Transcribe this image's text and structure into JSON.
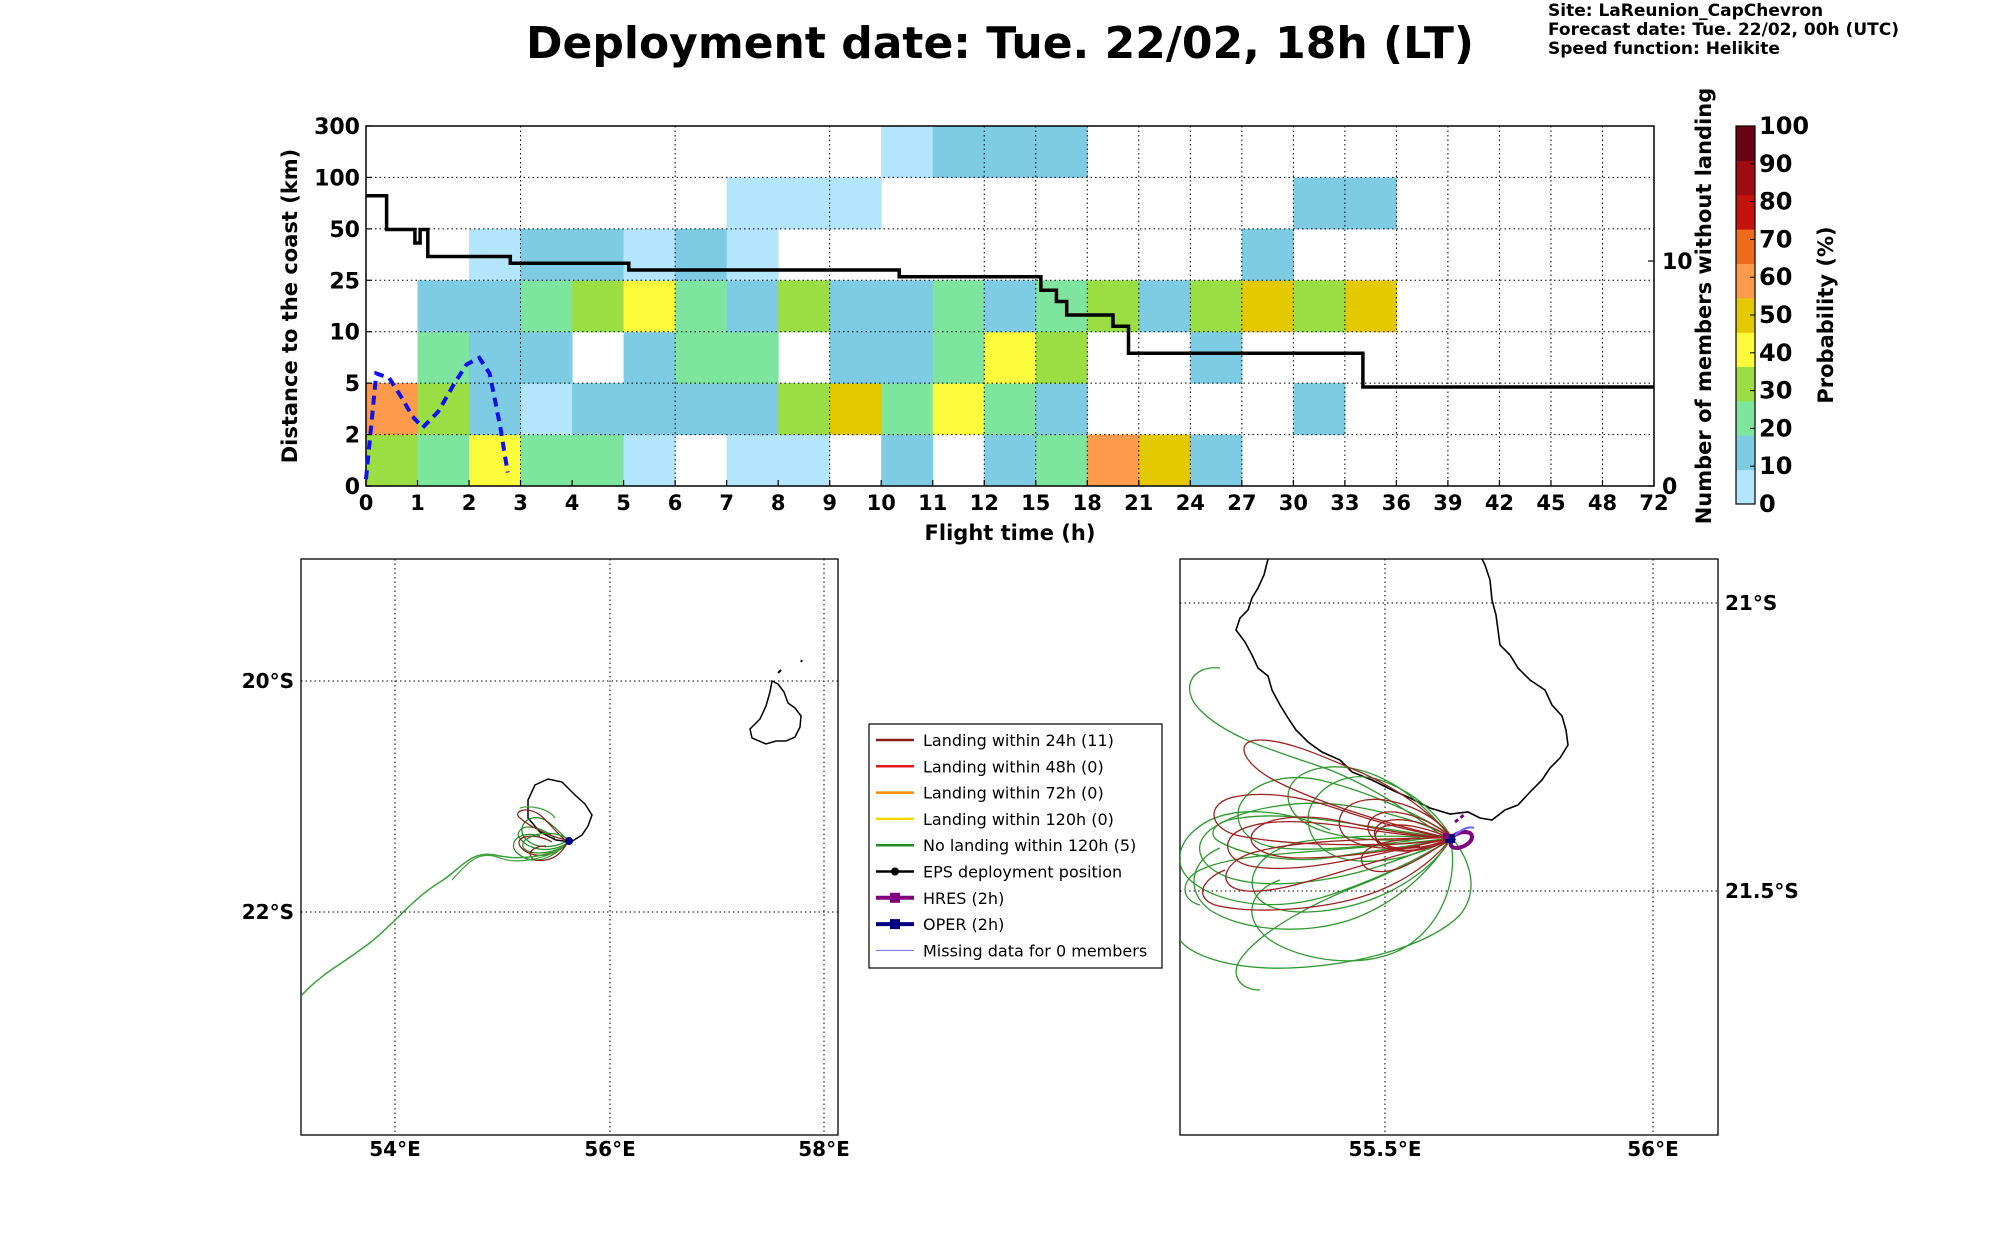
{
  "header": {
    "title": "Deployment date: Tue. 22/02, 18h (LT)",
    "site": "Site: LaReunion_CapChevron",
    "forecast": "Forecast date: Tue. 22/02, 00h (UTC)",
    "speed": "Speed function: Helikite"
  },
  "chart_data": [
    {
      "type": "heatmap",
      "xlabel": "Flight time (h)",
      "ylabel": "Distance to the coast (km)",
      "y2label": "Number of members without landing",
      "x_ticks": [
        "0",
        "1",
        "2",
        "3",
        "4",
        "5",
        "6",
        "7",
        "8",
        "9",
        "10",
        "11",
        "12",
        "15",
        "18",
        "21",
        "24",
        "27",
        "30",
        "33",
        "36",
        "39",
        "42",
        "45",
        "48",
        "72"
      ],
      "y_ticks": [
        "0",
        "2",
        "5",
        "10",
        "25",
        "50",
        "100",
        "300"
      ],
      "y2_ticks": [
        "0",
        "10"
      ],
      "y2_range": [
        0,
        16
      ],
      "cells_note": "cells given as [x_bin_index, y_bin_index, probability_percent]",
      "cells": [
        [
          0,
          0,
          30
        ],
        [
          1,
          0,
          20
        ],
        [
          2,
          0,
          40
        ],
        [
          3,
          0,
          20
        ],
        [
          4,
          0,
          20
        ],
        [
          5,
          0,
          5
        ],
        [
          7,
          0,
          5
        ],
        [
          8,
          0,
          5
        ],
        [
          10,
          0,
          10
        ],
        [
          12,
          0,
          10
        ],
        [
          13,
          0,
          20
        ],
        [
          14,
          0,
          60
        ],
        [
          15,
          0,
          50
        ],
        [
          16,
          0,
          10
        ],
        [
          0,
          1,
          60
        ],
        [
          1,
          1,
          30
        ],
        [
          2,
          1,
          10
        ],
        [
          3,
          1,
          5
        ],
        [
          4,
          1,
          10
        ],
        [
          5,
          1,
          10
        ],
        [
          6,
          1,
          10
        ],
        [
          7,
          1,
          10
        ],
        [
          8,
          1,
          30
        ],
        [
          9,
          1,
          50
        ],
        [
          10,
          1,
          20
        ],
        [
          11,
          1,
          40
        ],
        [
          12,
          1,
          20
        ],
        [
          13,
          1,
          10
        ],
        [
          18,
          1,
          10
        ],
        [
          1,
          2,
          20
        ],
        [
          2,
          2,
          10
        ],
        [
          3,
          2,
          10
        ],
        [
          5,
          2,
          10
        ],
        [
          6,
          2,
          20
        ],
        [
          7,
          2,
          20
        ],
        [
          9,
          2,
          10
        ],
        [
          10,
          2,
          10
        ],
        [
          11,
          2,
          20
        ],
        [
          12,
          2,
          40
        ],
        [
          13,
          2,
          30
        ],
        [
          16,
          2,
          10
        ],
        [
          1,
          3,
          10
        ],
        [
          2,
          3,
          10
        ],
        [
          3,
          3,
          20
        ],
        [
          4,
          3,
          30
        ],
        [
          5,
          3,
          40
        ],
        [
          6,
          3,
          20
        ],
        [
          7,
          3,
          10
        ],
        [
          8,
          3,
          30
        ],
        [
          9,
          3,
          10
        ],
        [
          10,
          3,
          10
        ],
        [
          11,
          3,
          20
        ],
        [
          12,
          3,
          10
        ],
        [
          13,
          3,
          20
        ],
        [
          14,
          3,
          30
        ],
        [
          15,
          3,
          10
        ],
        [
          16,
          3,
          30
        ],
        [
          17,
          3,
          50
        ],
        [
          18,
          3,
          30
        ],
        [
          19,
          3,
          50
        ],
        [
          2,
          4,
          5
        ],
        [
          3,
          4,
          10
        ],
        [
          4,
          4,
          10
        ],
        [
          5,
          4,
          5
        ],
        [
          6,
          4,
          10
        ],
        [
          7,
          4,
          5
        ],
        [
          17,
          4,
          10
        ],
        [
          7,
          5,
          5
        ],
        [
          8,
          5,
          5
        ],
        [
          9,
          5,
          5
        ],
        [
          18,
          5,
          10
        ],
        [
          19,
          5,
          10
        ],
        [
          10,
          6,
          5
        ],
        [
          11,
          6,
          10
        ],
        [
          12,
          6,
          10
        ],
        [
          13,
          6,
          10
        ]
      ],
      "colorbar": {
        "label": "Probability (%)",
        "ticks": [
          "0",
          "10",
          "20",
          "30",
          "40",
          "50",
          "60",
          "70",
          "80",
          "90",
          "100"
        ],
        "colors": [
          "#b3e5fc",
          "#7ecbe4",
          "#7ee59e",
          "#9ade44",
          "#fbfb3c",
          "#e4c800",
          "#fd9a4c",
          "#ec6b1d",
          "#c4120c",
          "#a00d10",
          "#6a0414"
        ]
      },
      "series": [
        {
          "name": "",
          "style": "solid black step",
          "x_bin": [
            0,
            0.4,
            0.4,
            0.95,
            0.95,
            1.05,
            1.05,
            1.2,
            1.2,
            2.8,
            2.8,
            5.1,
            5.1,
            10.35,
            10.35,
            13.1,
            13.1,
            13.4,
            13.4,
            13.6,
            13.6,
            14.5,
            14.5,
            14.8,
            14.8,
            19.35,
            19.35,
            25
          ],
          "y_members": [
            12.9,
            12.9,
            11.4,
            11.4,
            10.8,
            10.8,
            11.4,
            11.4,
            10.2,
            10.2,
            9.9,
            9.9,
            9.6,
            9.6,
            9.3,
            9.3,
            8.7,
            8.7,
            8.2,
            8.2,
            7.6,
            7.6,
            7.1,
            7.1,
            5.9,
            5.9,
            4.4,
            4.4
          ]
        },
        {
          "name": "",
          "style": "dashed blue",
          "x_bin": [
            0,
            0.2,
            0.45,
            0.7,
            0.9,
            1.1,
            1.4,
            1.7,
            1.95,
            2.2,
            2.4,
            2.6,
            2.75
          ],
          "y_members": [
            0.3,
            5.0,
            4.8,
            3.9,
            3.1,
            2.6,
            3.3,
            4.5,
            5.4,
            5.7,
            5.0,
            2.7,
            0.6
          ]
        }
      ]
    }
  ],
  "map_left": {
    "lat_labels": [
      "20°S",
      "22°S"
    ],
    "lon_labels": [
      "54°E",
      "56°E",
      "58°E"
    ]
  },
  "map_right": {
    "lat_labels": [
      "21°S",
      "21.5°S"
    ],
    "lon_labels": [
      "55.5°E",
      "56°E"
    ]
  },
  "legend": {
    "items": [
      {
        "label": "Landing within 24h (11)",
        "color": "#8b1a1a",
        "marker": "line"
      },
      {
        "label": "Landing within 48h (0)",
        "color": "#e41a1c",
        "marker": "line"
      },
      {
        "label": "Landing within 72h (0)",
        "color": "#ff8c00",
        "marker": "line"
      },
      {
        "label": "Landing within 120h (0)",
        "color": "#f0d800",
        "marker": "line"
      },
      {
        "label": "No landing within 120h (5)",
        "color": "#228b22",
        "marker": "line"
      },
      {
        "label": "EPS deployment position",
        "color": "#000000",
        "marker": "dot"
      },
      {
        "label": "HRES (2h)",
        "color": "#800080",
        "marker": "square"
      },
      {
        "label": "OPER (2h)",
        "color": "#000080",
        "marker": "square"
      },
      {
        "label": "Missing data for 0 members",
        "color": "#6b6bff",
        "marker": "thin"
      }
    ]
  }
}
